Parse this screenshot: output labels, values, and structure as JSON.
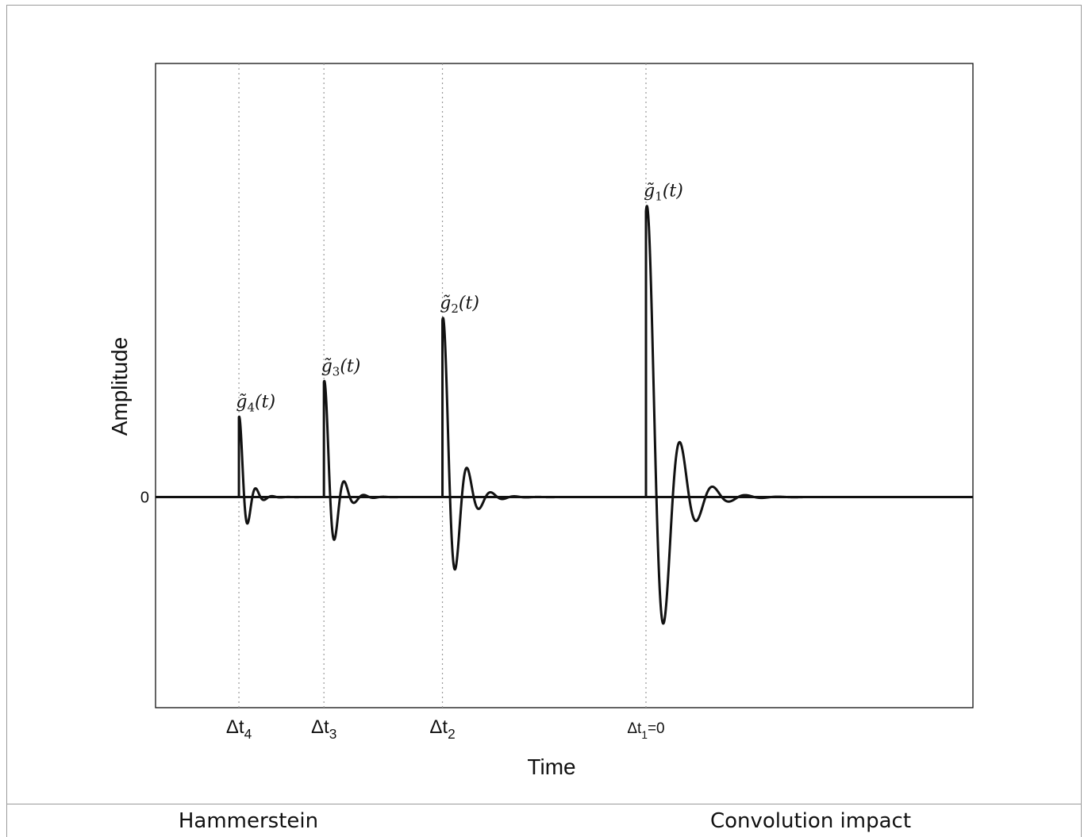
{
  "chart_data": {
    "type": "line",
    "title": "",
    "xlabel": "Time",
    "ylabel": "Amplitude",
    "y_ticks": [
      {
        "value": 0,
        "label": "0"
      }
    ],
    "ylim": [
      -0.68,
      1.4
    ],
    "xlim": [
      0,
      10
    ],
    "grid": false,
    "x_markers": [
      {
        "name": "dt4",
        "label_main": "Δt",
        "label_sub": "4",
        "label_suffix": "",
        "x": 1.02
      },
      {
        "name": "dt3",
        "label_main": "Δt",
        "label_sub": "3",
        "label_suffix": "",
        "x": 2.06
      },
      {
        "name": "dt2",
        "label_main": "Δt",
        "label_sub": "2",
        "label_suffix": "",
        "x": 3.51
      },
      {
        "name": "dt1",
        "label_main": "Δt",
        "label_sub": "1",
        "label_suffix": "=0",
        "x": 6.0
      }
    ],
    "series": [
      {
        "annotation_base": "g̃",
        "annotation_sub": "4",
        "annotation_arg": "(t)",
        "onset": 1.02,
        "amplitude": 0.285,
        "period": 0.2,
        "decay": 0.09
      },
      {
        "annotation_base": "g̃",
        "annotation_sub": "3",
        "annotation_arg": "(t)",
        "onset": 2.06,
        "amplitude": 0.41,
        "period": 0.24,
        "decay": 0.12
      },
      {
        "annotation_base": "g̃",
        "annotation_sub": "2",
        "annotation_arg": "(t)",
        "onset": 3.51,
        "amplitude": 0.63,
        "period": 0.29,
        "decay": 0.16
      },
      {
        "annotation_base": "g̃",
        "annotation_sub": "1",
        "annotation_arg": "(t)",
        "onset": 6.0,
        "amplitude": 1.02,
        "period": 0.4,
        "decay": 0.24
      }
    ]
  },
  "captions": {
    "left": "Hammerstein",
    "right": "Convolution impact"
  }
}
